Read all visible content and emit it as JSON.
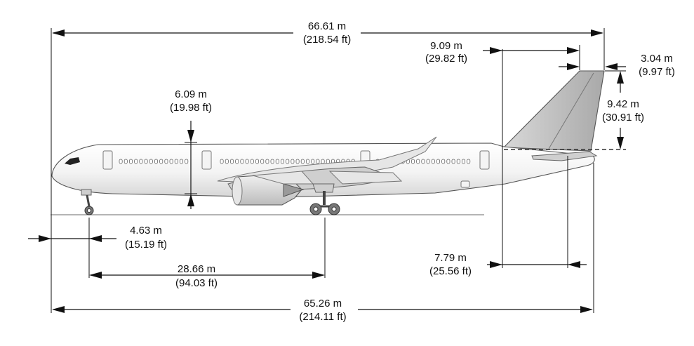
{
  "dimensions": {
    "overall_length": {
      "metric": "66.61 m",
      "imperial": "(218.54 ft)"
    },
    "fuselage_length": {
      "metric": "65.26 m",
      "imperial": "(214.11 ft)"
    },
    "fuselage_height": {
      "metric": "6.09 m",
      "imperial": "(19.98 ft)"
    },
    "nose_to_nose_gear": {
      "metric": "4.63 m",
      "imperial": "(15.19 ft)"
    },
    "wheelbase": {
      "metric": "28.66 m",
      "imperial": "(94.03 ft)"
    },
    "fin_root_chord": {
      "metric": "9.09 m",
      "imperial": "(29.82 ft)"
    },
    "fin_tip_chord": {
      "metric": "3.04 m",
      "imperial": "(9.97 ft)"
    },
    "fin_height": {
      "metric": "9.42 m",
      "imperial": "(30.91 ft)"
    },
    "stabilizer_offset": {
      "metric": "7.79 m",
      "imperial": "(25.56 ft)"
    }
  }
}
